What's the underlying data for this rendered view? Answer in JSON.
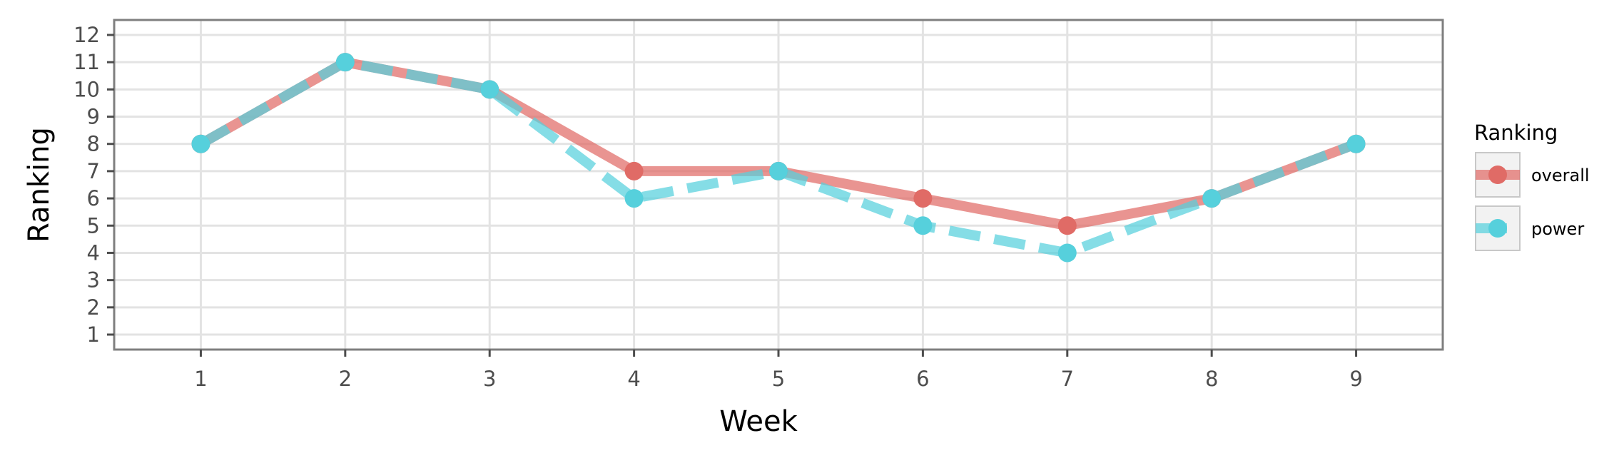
{
  "chart_data": {
    "type": "line",
    "xlabel": "Week",
    "ylabel": "Ranking",
    "x": [
      1,
      2,
      3,
      4,
      5,
      6,
      7,
      8,
      9
    ],
    "xlim": [
      0.4,
      9.6
    ],
    "ylim": [
      12.55,
      0.45
    ],
    "y_reversed": true,
    "x_ticks": [
      1,
      2,
      3,
      4,
      5,
      6,
      7,
      8,
      9
    ],
    "y_ticks": [
      1,
      2,
      3,
      4,
      5,
      6,
      7,
      8,
      9,
      10,
      11,
      12
    ],
    "grid": true,
    "legend": {
      "title": "Ranking",
      "position": "right"
    },
    "series": [
      {
        "name": "overall",
        "values": [
          8,
          11,
          10,
          7,
          7,
          6,
          5,
          6,
          8
        ],
        "color": "#e06b66",
        "line_style": "solid"
      },
      {
        "name": "power",
        "values": [
          8,
          11,
          10,
          6,
          7,
          5,
          4,
          6,
          8
        ],
        "color": "#56d0dc",
        "line_style": "dashed"
      }
    ]
  }
}
